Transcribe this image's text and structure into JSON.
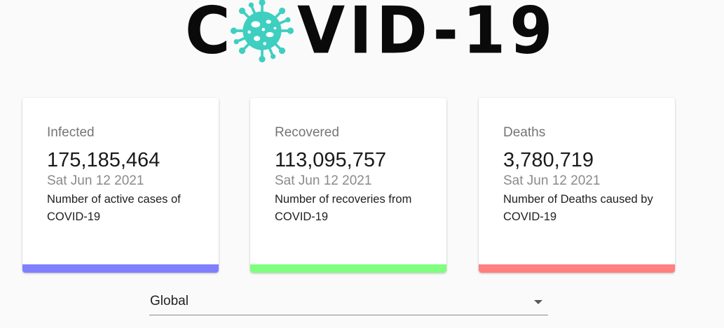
{
  "logo": {
    "letter_c": "C",
    "rest": "VID-19",
    "virus_color": "#3ecfc0"
  },
  "cards": [
    {
      "title": "Infected",
      "value": "175,185,464",
      "date": "Sat Jun 12 2021",
      "description": "Number of active cases of COVID-19",
      "bar_color": "#8080ff"
    },
    {
      "title": "Recovered",
      "value": "113,095,757",
      "date": "Sat Jun 12 2021",
      "description": "Number of recoveries from COVID-19",
      "bar_color": "#80ff80"
    },
    {
      "title": "Deaths",
      "value": "3,780,719",
      "date": "Sat Jun 12 2021",
      "description": "Number of Deaths caused by COVID-19",
      "bar_color": "#ff8080"
    }
  ],
  "country_select": {
    "selected": "Global",
    "icon": "chevron-down-icon"
  }
}
